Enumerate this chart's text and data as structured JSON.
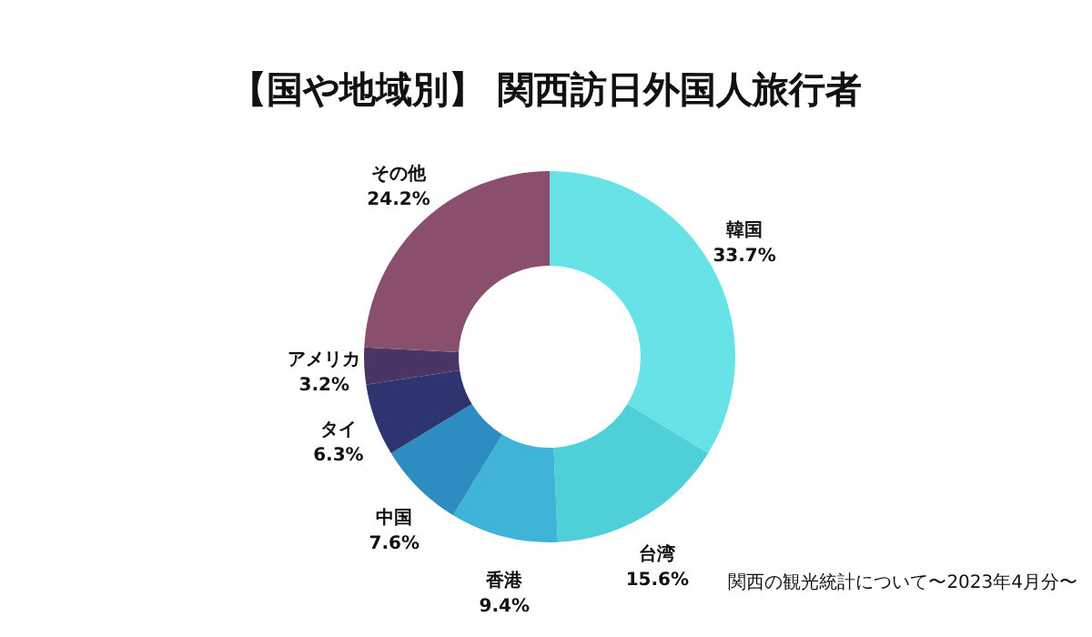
{
  "chart_data": {
    "type": "donut",
    "title": "【国や地域別】 関西訪日外国人旅行者",
    "categories": [
      "韓国",
      "台湾",
      "香港",
      "中国",
      "タイ",
      "アメリカ",
      "その他"
    ],
    "values": [
      33.7,
      15.6,
      9.4,
      7.6,
      6.3,
      3.2,
      24.2
    ],
    "value_labels": [
      "33.7%",
      "15.6%",
      "9.4%",
      "7.6%",
      "6.3%",
      "3.2%",
      "24.2%"
    ],
    "colors": [
      "#67e3e8",
      "#4fcfd8",
      "#40b4d8",
      "#2d8cc0",
      "#2e3470",
      "#4a3566",
      "#8b4f6e"
    ],
    "annotations": [
      "関西の観光統計について〜2023年4月分〜"
    ]
  }
}
